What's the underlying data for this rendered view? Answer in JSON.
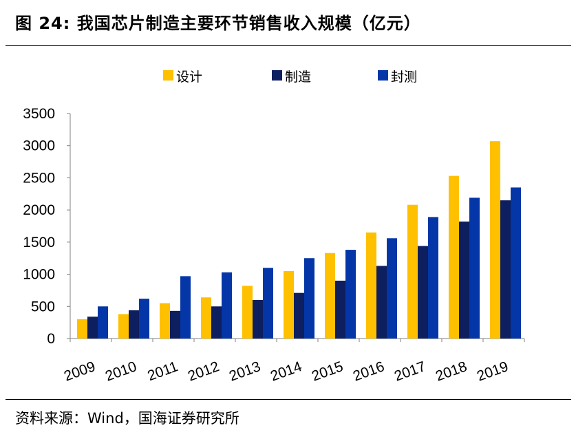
{
  "header": {
    "title": "图 24:  我国芯片制造主要环节销售收入规模（亿元）"
  },
  "footer": {
    "source": "资料来源：Wind，国海证券研究所"
  },
  "colors": {
    "design": "#FFC000",
    "manufacture": "#0D1F5E",
    "packaging": "#0536A8"
  },
  "chart_data": {
    "type": "bar",
    "categories": [
      "2009",
      "2010",
      "2011",
      "2012",
      "2013",
      "2014",
      "2015",
      "2016",
      "2017",
      "2018",
      "2019"
    ],
    "series": [
      {
        "name": "设计",
        "values": [
          300,
          380,
          550,
          640,
          820,
          1050,
          1330,
          1650,
          2080,
          2530,
          3070
        ]
      },
      {
        "name": "制造",
        "values": [
          340,
          440,
          430,
          500,
          600,
          710,
          900,
          1130,
          1440,
          1820,
          2150
        ]
      },
      {
        "name": "封测",
        "values": [
          500,
          620,
          970,
          1030,
          1100,
          1250,
          1380,
          1560,
          1890,
          2190,
          2350
        ]
      }
    ],
    "xlabel": "",
    "ylabel": "",
    "ylim": [
      0,
      3500
    ],
    "yticks": [
      "0",
      "500",
      "1000",
      "1500",
      "2000",
      "2500",
      "3000",
      "3500"
    ],
    "legend_position": "top",
    "grid": false
  }
}
